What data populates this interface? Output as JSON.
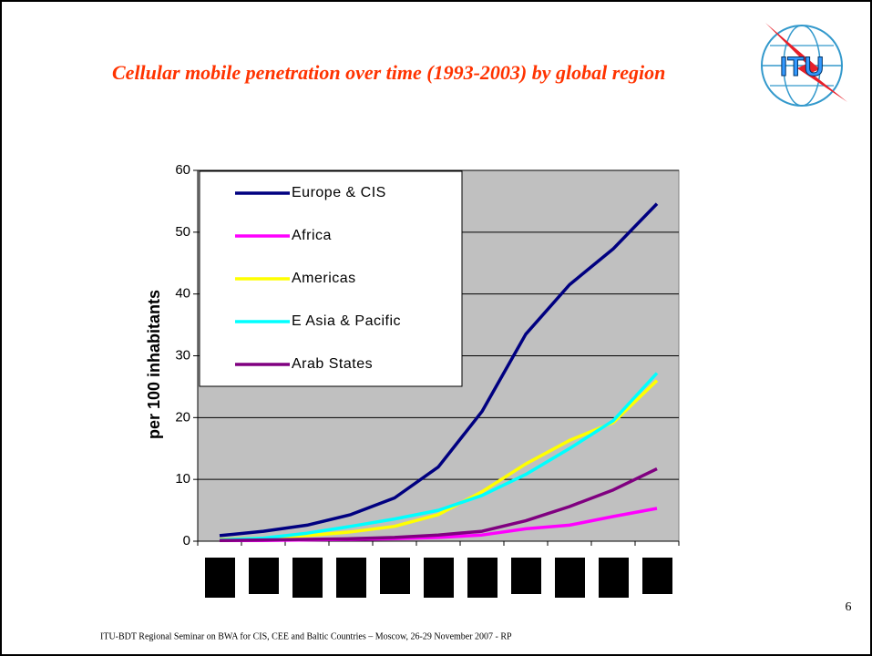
{
  "title": "Cellular mobile penetration over time (1993-2003)  by global region",
  "logo_text": "ITU",
  "page_number": "6",
  "footer": "ITU-BDT Regional Seminar on BWA for CIS, CEE and Baltic Countries – Moscow,  26-29  November  2007 - RP",
  "chart_data": {
    "type": "line",
    "y_label": "per 100 inhabitants",
    "categories": [
      null,
      null,
      null,
      null,
      null,
      null,
      null,
      null,
      null,
      null,
      null
    ],
    "series": [
      {
        "name": "Europe & CIS",
        "color": "#000080",
        "values": [
          0.9,
          1.6,
          2.6,
          4.3,
          7,
          12,
          21,
          33.5,
          41.5,
          47.3,
          54.6
        ]
      },
      {
        "name": "Africa",
        "color": "#ff00ff",
        "values": [
          0.1,
          0.1,
          0.2,
          0.3,
          0.4,
          0.6,
          1.0,
          2.0,
          2.6,
          4,
          5.3
        ]
      },
      {
        "name": "Americas",
        "color": "#ffff00",
        "values": [
          0.3,
          0.5,
          0.9,
          1.5,
          2.4,
          4.3,
          8,
          12.5,
          16.3,
          19.2,
          26
        ]
      },
      {
        "name": "E Asia & Pacific",
        "color": "#00ffff",
        "values": [
          0.2,
          0.5,
          1.3,
          2.4,
          3.6,
          5.0,
          7.4,
          10.8,
          15,
          19.5,
          27.2
        ]
      },
      {
        "name": "Arab States",
        "color": "#800080",
        "values": [
          0.1,
          0.2,
          0.3,
          0.4,
          0.6,
          1.0,
          1.6,
          3.3,
          5.6,
          8.3,
          11.7
        ]
      }
    ],
    "ylim": [
      0,
      60
    ],
    "yticks": [
      0,
      10,
      20,
      30,
      40,
      50,
      60
    ],
    "grid": true,
    "legend": "top-left"
  }
}
